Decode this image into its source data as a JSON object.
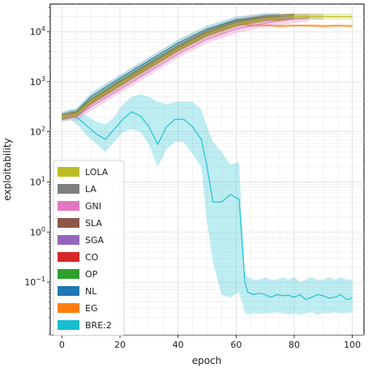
{
  "chart_data": {
    "type": "line",
    "xlabel": "epoch",
    "ylabel": "exploitability",
    "xlim": [
      -4,
      104
    ],
    "ylim_log10": [
      -2.05,
      4.55
    ],
    "y_scale": "log",
    "grid": true,
    "legend_position": "lower-left",
    "x_ticks": [
      0,
      20,
      40,
      60,
      80,
      100
    ],
    "x_tick_labels": [
      "0",
      "20",
      "40",
      "60",
      "80",
      "100"
    ],
    "y_ticks_log10": [
      -1,
      0,
      1,
      2,
      3,
      4
    ],
    "y_tick_bases": [
      "10",
      "10",
      "10",
      "10",
      "10",
      "10"
    ],
    "y_tick_exponents": [
      "−1",
      "0",
      "1",
      "2",
      "3",
      "4"
    ],
    "series": [
      {
        "name": "LOLA",
        "color": "#bcbd22",
        "x": [
          0,
          5,
          10,
          20,
          30,
          40,
          50,
          60,
          70,
          80,
          100
        ],
        "log10_y": [
          2.3,
          2.35,
          2.6,
          2.95,
          3.3,
          3.65,
          3.95,
          4.15,
          4.25,
          4.3,
          4.3
        ],
        "band_log10": 0.06
      },
      {
        "name": "LA",
        "color": "#7f7f7f",
        "x": [
          0,
          5,
          10,
          20,
          30,
          40,
          50,
          60,
          70,
          80,
          90
        ],
        "log10_y": [
          2.3,
          2.35,
          2.6,
          2.97,
          3.33,
          3.68,
          3.98,
          4.17,
          4.27,
          4.3,
          4.3
        ],
        "band_log10": 0.06
      },
      {
        "name": "GNI",
        "color": "#e377c2",
        "x": [
          0,
          5,
          10,
          20,
          30,
          40,
          50,
          60,
          70,
          80,
          85
        ],
        "log10_y": [
          2.3,
          2.3,
          2.5,
          2.85,
          3.2,
          3.55,
          3.85,
          4.05,
          4.17,
          4.25,
          4.28
        ],
        "band_log10": 0.08
      },
      {
        "name": "SLA",
        "color": "#8c564b",
        "x": [
          0,
          5,
          10,
          20,
          30,
          40,
          50,
          60,
          70,
          80
        ],
        "log10_y": [
          2.3,
          2.35,
          2.58,
          2.93,
          3.28,
          3.63,
          3.93,
          4.13,
          4.25,
          4.3
        ],
        "band_log10": 0.06
      },
      {
        "name": "SGA",
        "color": "#9467bd",
        "x": [
          0,
          5,
          10,
          20,
          30,
          40,
          50,
          60,
          70,
          80
        ],
        "log10_y": [
          2.3,
          2.35,
          2.6,
          2.97,
          3.32,
          3.67,
          3.97,
          4.17,
          4.27,
          4.3
        ],
        "band_log10": 0.06
      },
      {
        "name": "CO",
        "color": "#d62728",
        "x": [
          0,
          5,
          10,
          20,
          30,
          40,
          50,
          60,
          70,
          80
        ],
        "log10_y": [
          2.3,
          2.35,
          2.6,
          2.97,
          3.32,
          3.67,
          3.97,
          4.17,
          4.27,
          4.3
        ],
        "band_log10": 0.06
      },
      {
        "name": "OP",
        "color": "#2ca02c",
        "x": [
          0,
          5,
          10,
          20,
          30,
          40,
          50,
          60,
          70,
          80
        ],
        "log10_y": [
          2.3,
          2.38,
          2.65,
          3.02,
          3.37,
          3.72,
          4.0,
          4.2,
          4.28,
          4.3
        ],
        "band_log10": 0.06
      },
      {
        "name": "NL",
        "color": "#1f77b4",
        "x": [
          0,
          5,
          10,
          20,
          30,
          40,
          50,
          60,
          70,
          75
        ],
        "log10_y": [
          2.3,
          2.4,
          2.7,
          3.07,
          3.42,
          3.77,
          4.05,
          4.23,
          4.3,
          4.3
        ],
        "band_log10": 0.07
      },
      {
        "name": "EG",
        "color": "#ff7f0e",
        "x": [
          0,
          5,
          10,
          20,
          30,
          40,
          50,
          60,
          62,
          65,
          70,
          75,
          80,
          85,
          90,
          95,
          100
        ],
        "log10_y": [
          2.3,
          2.38,
          2.62,
          2.98,
          3.33,
          3.68,
          3.98,
          4.15,
          4.17,
          4.12,
          4.13,
          4.11,
          4.12,
          4.12,
          4.11,
          4.12,
          4.11
        ],
        "band_log10": 0.03
      },
      {
        "name": "BRE:2",
        "color": "#17becf",
        "x": [
          0,
          3,
          6,
          9,
          12,
          15,
          18,
          21,
          24,
          27,
          30,
          33,
          36,
          39,
          42,
          45,
          48,
          50,
          52,
          55,
          58,
          61,
          63,
          64,
          66,
          68,
          70,
          72,
          74,
          76,
          78,
          80,
          82,
          84,
          86,
          88,
          90,
          92,
          94,
          96,
          98,
          100
        ],
        "log10_y": [
          2.3,
          2.35,
          2.25,
          2.1,
          1.95,
          1.85,
          2.05,
          2.25,
          2.4,
          2.32,
          2.1,
          1.75,
          2.1,
          2.25,
          2.25,
          2.1,
          1.85,
          1.3,
          0.6,
          0.6,
          0.75,
          0.65,
          -1.0,
          -1.2,
          -1.25,
          -1.22,
          -1.25,
          -1.3,
          -1.25,
          -1.27,
          -1.26,
          -1.3,
          -1.25,
          -1.35,
          -1.3,
          -1.25,
          -1.27,
          -1.32,
          -1.3,
          -1.25,
          -1.35,
          -1.32
        ],
        "band_lower_log10": [
          2.2,
          2.25,
          2.1,
          1.9,
          1.75,
          1.6,
          1.8,
          2.0,
          2.05,
          2.0,
          1.75,
          1.3,
          1.65,
          1.8,
          1.8,
          1.55,
          1.3,
          0.2,
          -0.6,
          -1.25,
          -1.3,
          -1.2,
          -1.6,
          -1.65,
          -1.62,
          -1.63,
          -1.62,
          -1.62,
          -1.6,
          -1.62,
          -1.65,
          -1.62,
          -1.65,
          -1.62,
          -1.6,
          -1.65,
          -1.62,
          -1.62,
          -1.6,
          -1.62,
          -1.62,
          -1.6
        ],
        "band_upper_log10": [
          2.4,
          2.45,
          2.4,
          2.3,
          2.2,
          2.15,
          2.3,
          2.55,
          2.7,
          2.75,
          2.7,
          2.6,
          2.55,
          2.6,
          2.6,
          2.6,
          2.45,
          2.1,
          1.8,
          1.6,
          1.35,
          1.4,
          -0.85,
          -0.9,
          -0.95,
          -0.95,
          -0.9,
          -0.95,
          -0.95,
          -0.9,
          -0.95,
          -0.9,
          -1.0,
          -0.95,
          -0.9,
          -0.95,
          -0.95,
          -0.9,
          -0.95,
          -0.9,
          -0.95,
          -0.95
        ]
      }
    ]
  }
}
